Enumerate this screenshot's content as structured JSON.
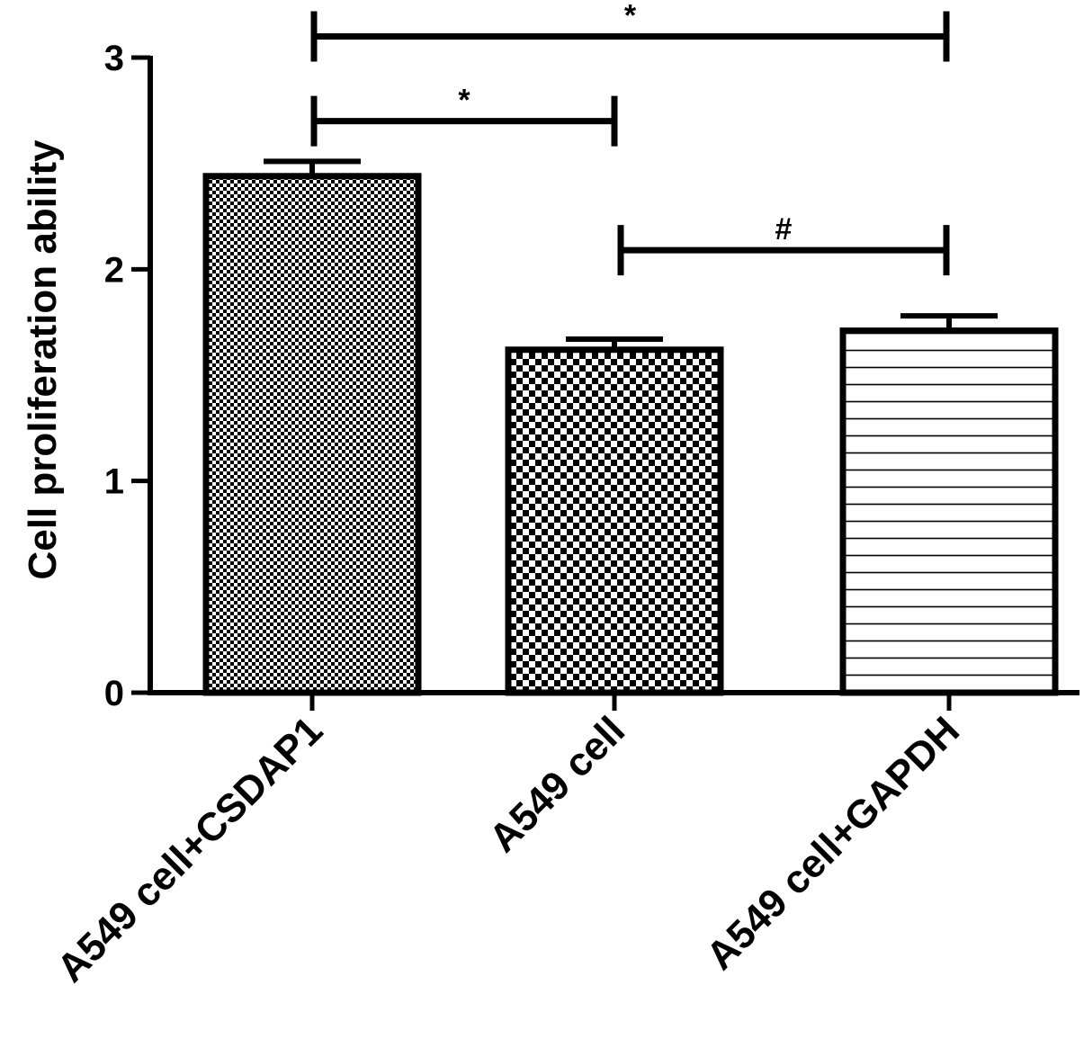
{
  "chart_data": {
    "type": "bar",
    "ylabel": "Cell proliferation ability",
    "ylim": [
      0,
      3
    ],
    "yticks": [
      "0",
      "1",
      "2",
      "3"
    ],
    "categories": [
      "A549 cell+CSDAP1",
      "A549 cell",
      "A549 cell+GAPDH"
    ],
    "values": [
      2.44,
      1.62,
      1.71
    ],
    "errors": [
      0.07,
      0.05,
      0.07
    ],
    "patterns": [
      "fine-checker",
      "checker",
      "horizontal-lines"
    ],
    "significance": [
      {
        "from": 0,
        "to": 2,
        "label": "*",
        "y": 3.1
      },
      {
        "from": 0,
        "to": 1,
        "label": "*",
        "y": 2.7
      },
      {
        "from": 1,
        "to": 2,
        "label": "#",
        "y": 2.09
      }
    ],
    "grid": false
  }
}
